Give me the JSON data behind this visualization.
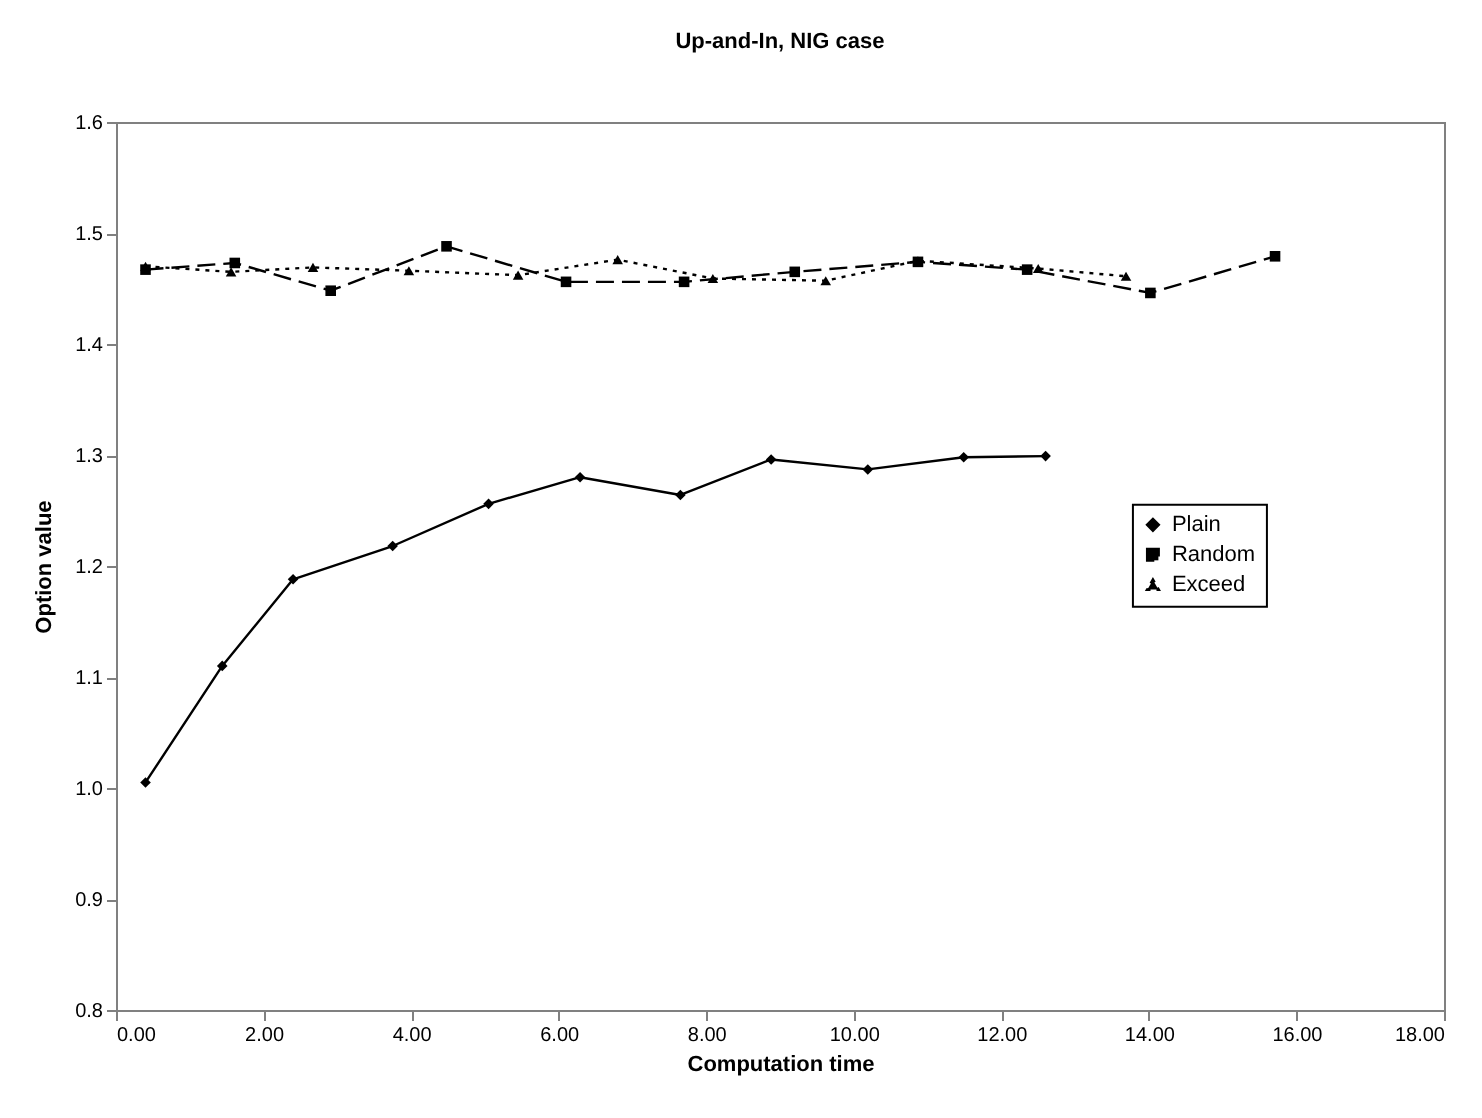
{
  "chart_data": {
    "type": "line",
    "title": "Up-and-In, NIG case",
    "xlabel": "Computation time",
    "ylabel": "Option value",
    "xlim": [
      0,
      18
    ],
    "xticks": [
      {
        "value": 0,
        "label": "0.00"
      },
      {
        "value": 2,
        "label": "2.00"
      },
      {
        "value": 4,
        "label": "4.00"
      },
      {
        "value": 6,
        "label": "6.00"
      },
      {
        "value": 8,
        "label": "8.00"
      },
      {
        "value": 10,
        "label": "10.00"
      },
      {
        "value": 12,
        "label": "12.00"
      },
      {
        "value": 14,
        "label": "14.00"
      },
      {
        "value": 16,
        "label": "16.00"
      },
      {
        "value": 18,
        "label": "18.00"
      }
    ],
    "ylim": [
      0.8,
      1.6
    ],
    "yticks": [
      {
        "value": 0.8,
        "label": "0.8"
      },
      {
        "value": 0.9,
        "label": "0.9"
      },
      {
        "value": 1,
        "label": "1.0"
      },
      {
        "value": 1.1,
        "label": "1.1"
      },
      {
        "value": 1.2,
        "label": "1.2"
      },
      {
        "value": 1.3,
        "label": "1.3"
      },
      {
        "value": 1.4,
        "label": "1.4"
      },
      {
        "value": 1.5,
        "label": "1.5"
      },
      {
        "value": 1.6,
        "label": "1.6"
      }
    ],
    "grid": false,
    "legend": "right",
    "series": [
      {
        "name": "Plain",
        "color": "#000000",
        "marker": "diamond",
        "line_style": "solid",
        "x": [
          0.4,
          1.44,
          2.4,
          3.75,
          5.05,
          6.29,
          7.65,
          8.88,
          10.19,
          11.49,
          12.6
        ],
        "values": [
          1.005,
          1.11,
          1.188,
          1.218,
          1.256,
          1.28,
          1.264,
          1.296,
          1.287,
          1.298,
          1.299
        ]
      },
      {
        "name": "Random",
        "color": "#000000",
        "marker": "square",
        "line_style": "dashed",
        "x": [
          0.4,
          1.61,
          2.91,
          4.48,
          6.1,
          7.7,
          9.2,
          10.87,
          12.35,
          14.02,
          15.71
        ],
        "values": [
          1.467,
          1.473,
          1.448,
          1.488,
          1.456,
          1.456,
          1.465,
          1.474,
          1.467,
          1.446,
          1.479
        ]
      },
      {
        "name": "Exceed",
        "color": "#000000",
        "marker": "triangle",
        "line_style": "dotted",
        "x": [
          0.4,
          1.56,
          2.67,
          3.97,
          5.45,
          6.8,
          8.09,
          9.62,
          10.87,
          12.5,
          13.69
        ],
        "values": [
          1.47,
          1.465,
          1.469,
          1.466,
          1.462,
          1.476,
          1.459,
          1.457,
          1.475,
          1.468,
          1.461
        ]
      }
    ]
  }
}
